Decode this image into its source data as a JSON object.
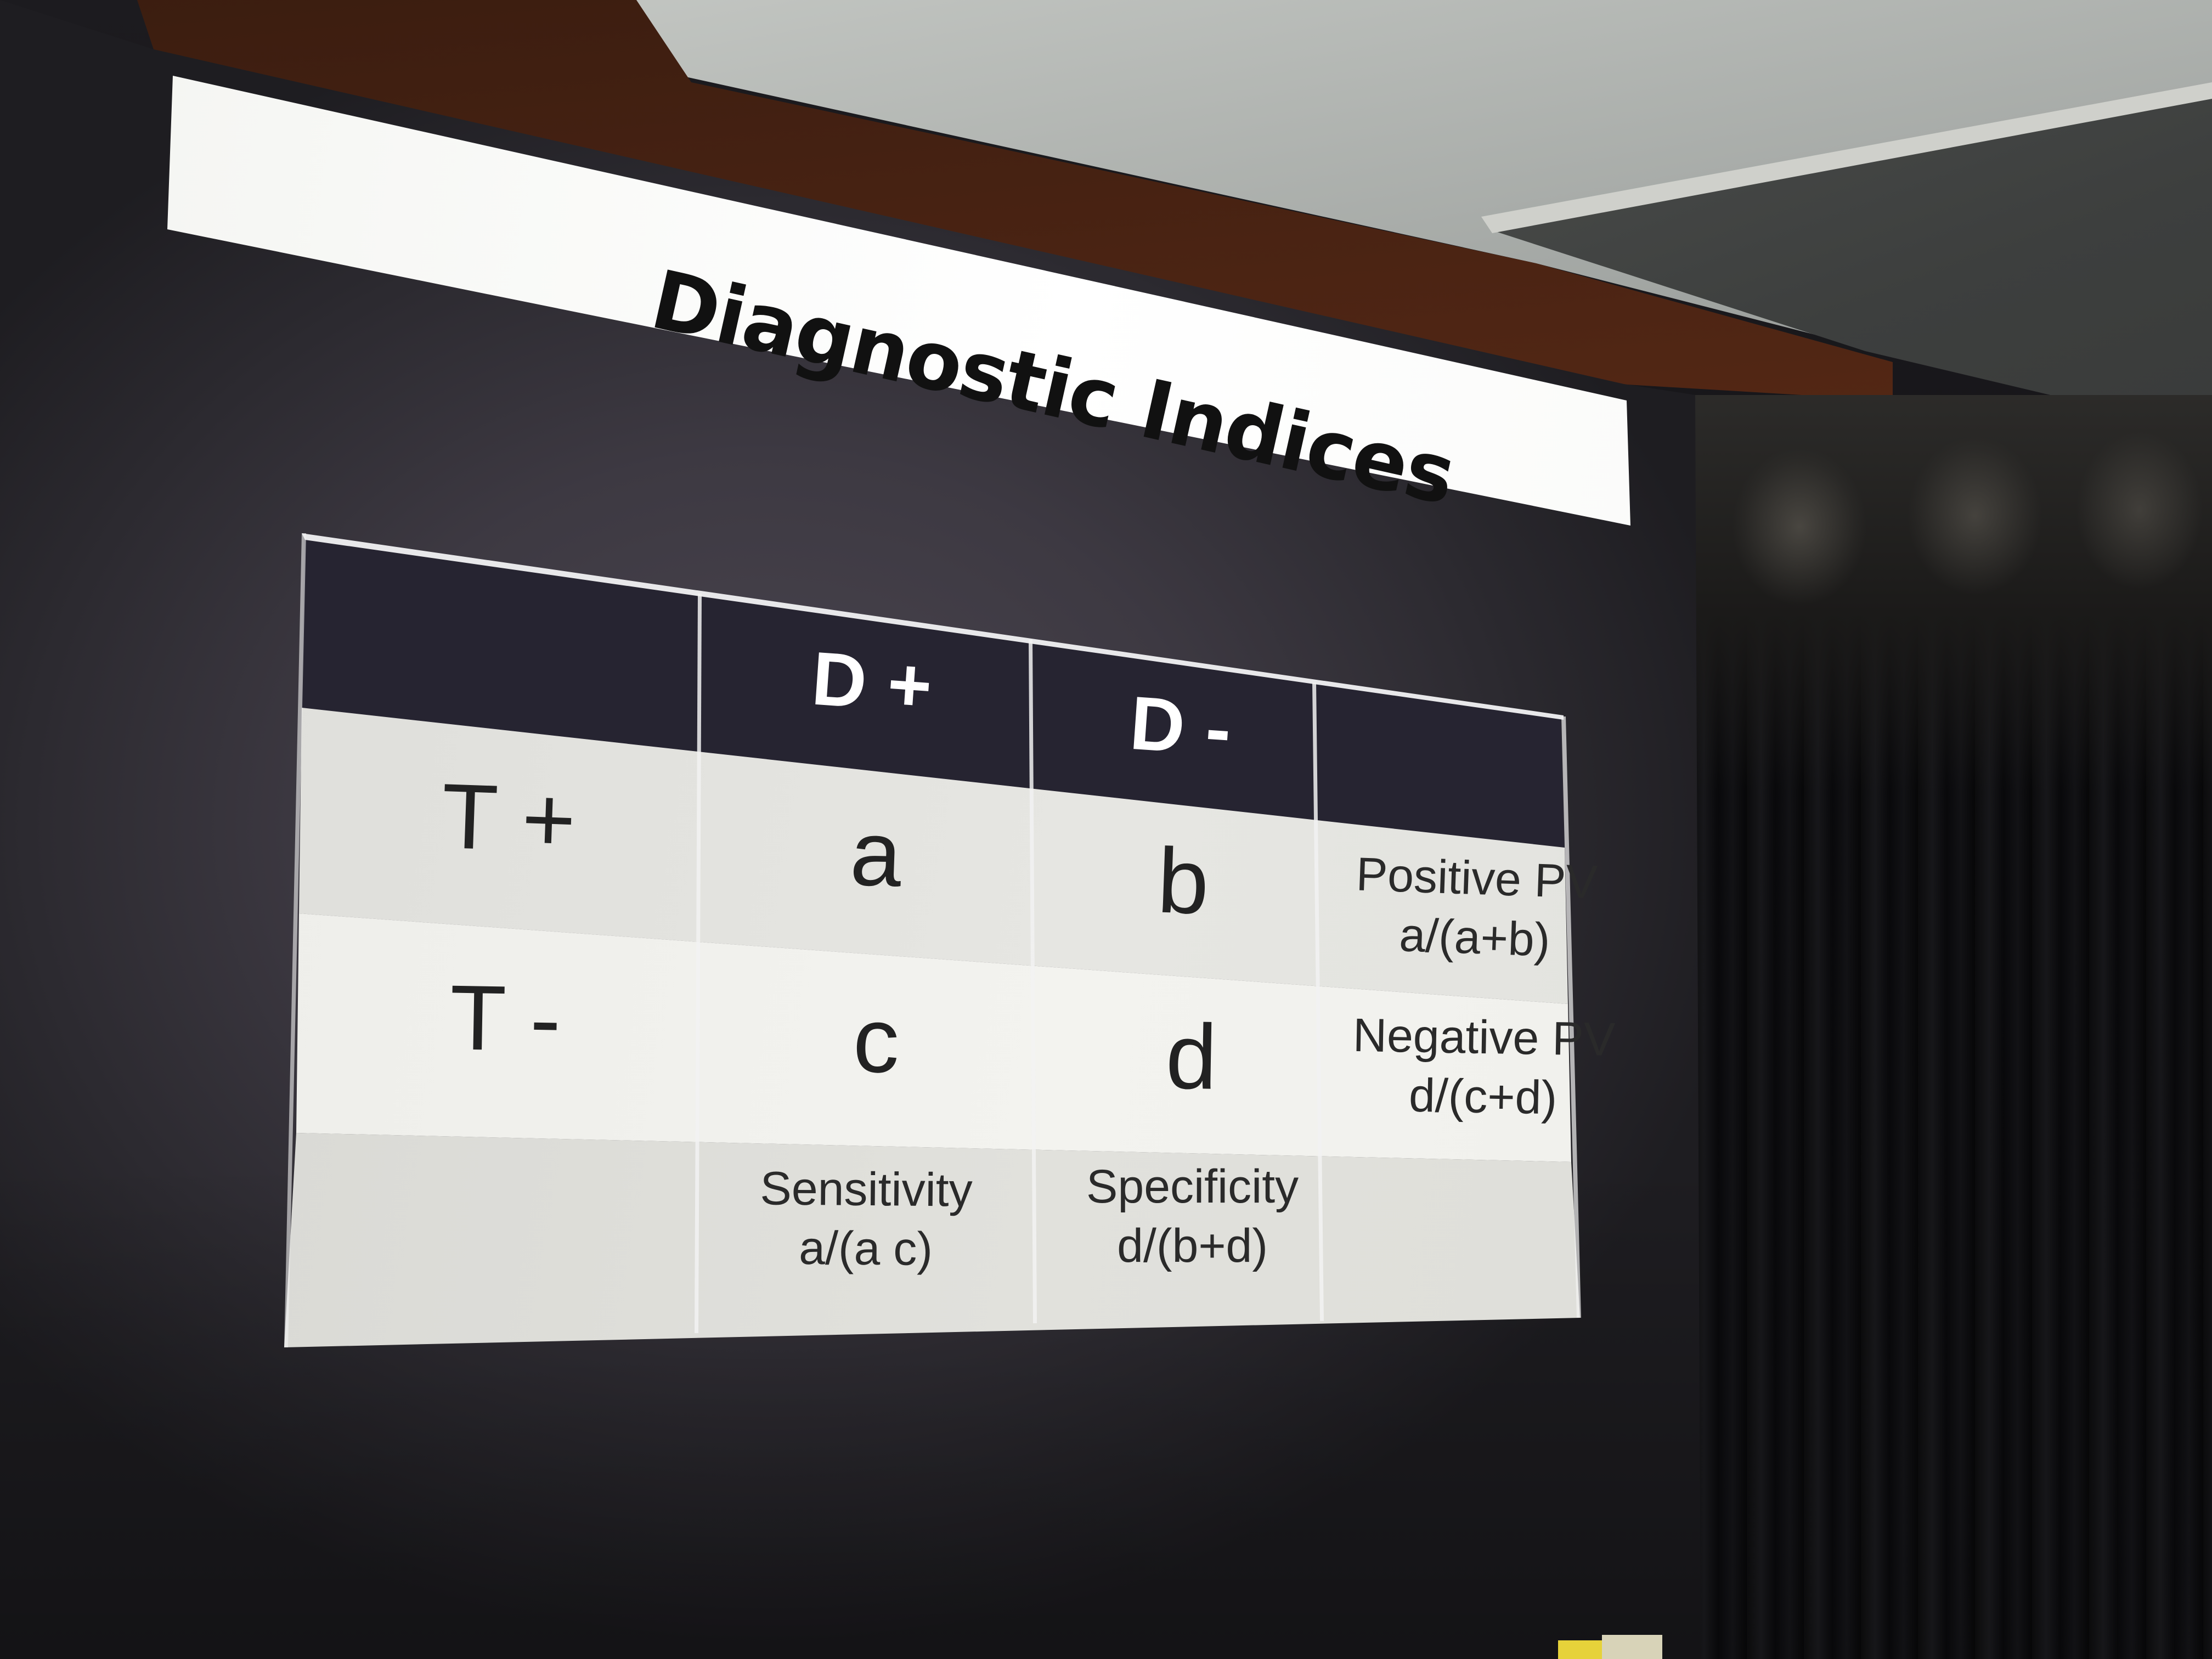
{
  "slide": {
    "title": "Diagnostic Indices"
  },
  "table": {
    "col_headers": [
      "D +",
      "D -"
    ],
    "rows": [
      {
        "label": "T +",
        "cells": [
          "a",
          "b"
        ],
        "summary_name": "Positive PV",
        "summary_formula": "a/(a+b)"
      },
      {
        "label": "T -",
        "cells": [
          "c",
          "d"
        ],
        "summary_name": "Negative PV",
        "summary_formula": "d/(c+d)"
      }
    ],
    "footer": [
      {
        "name": "Sensitivity",
        "formula": "a/(a c)"
      },
      {
        "name": "Specificity",
        "formula": "d/(b+d)"
      }
    ]
  }
}
